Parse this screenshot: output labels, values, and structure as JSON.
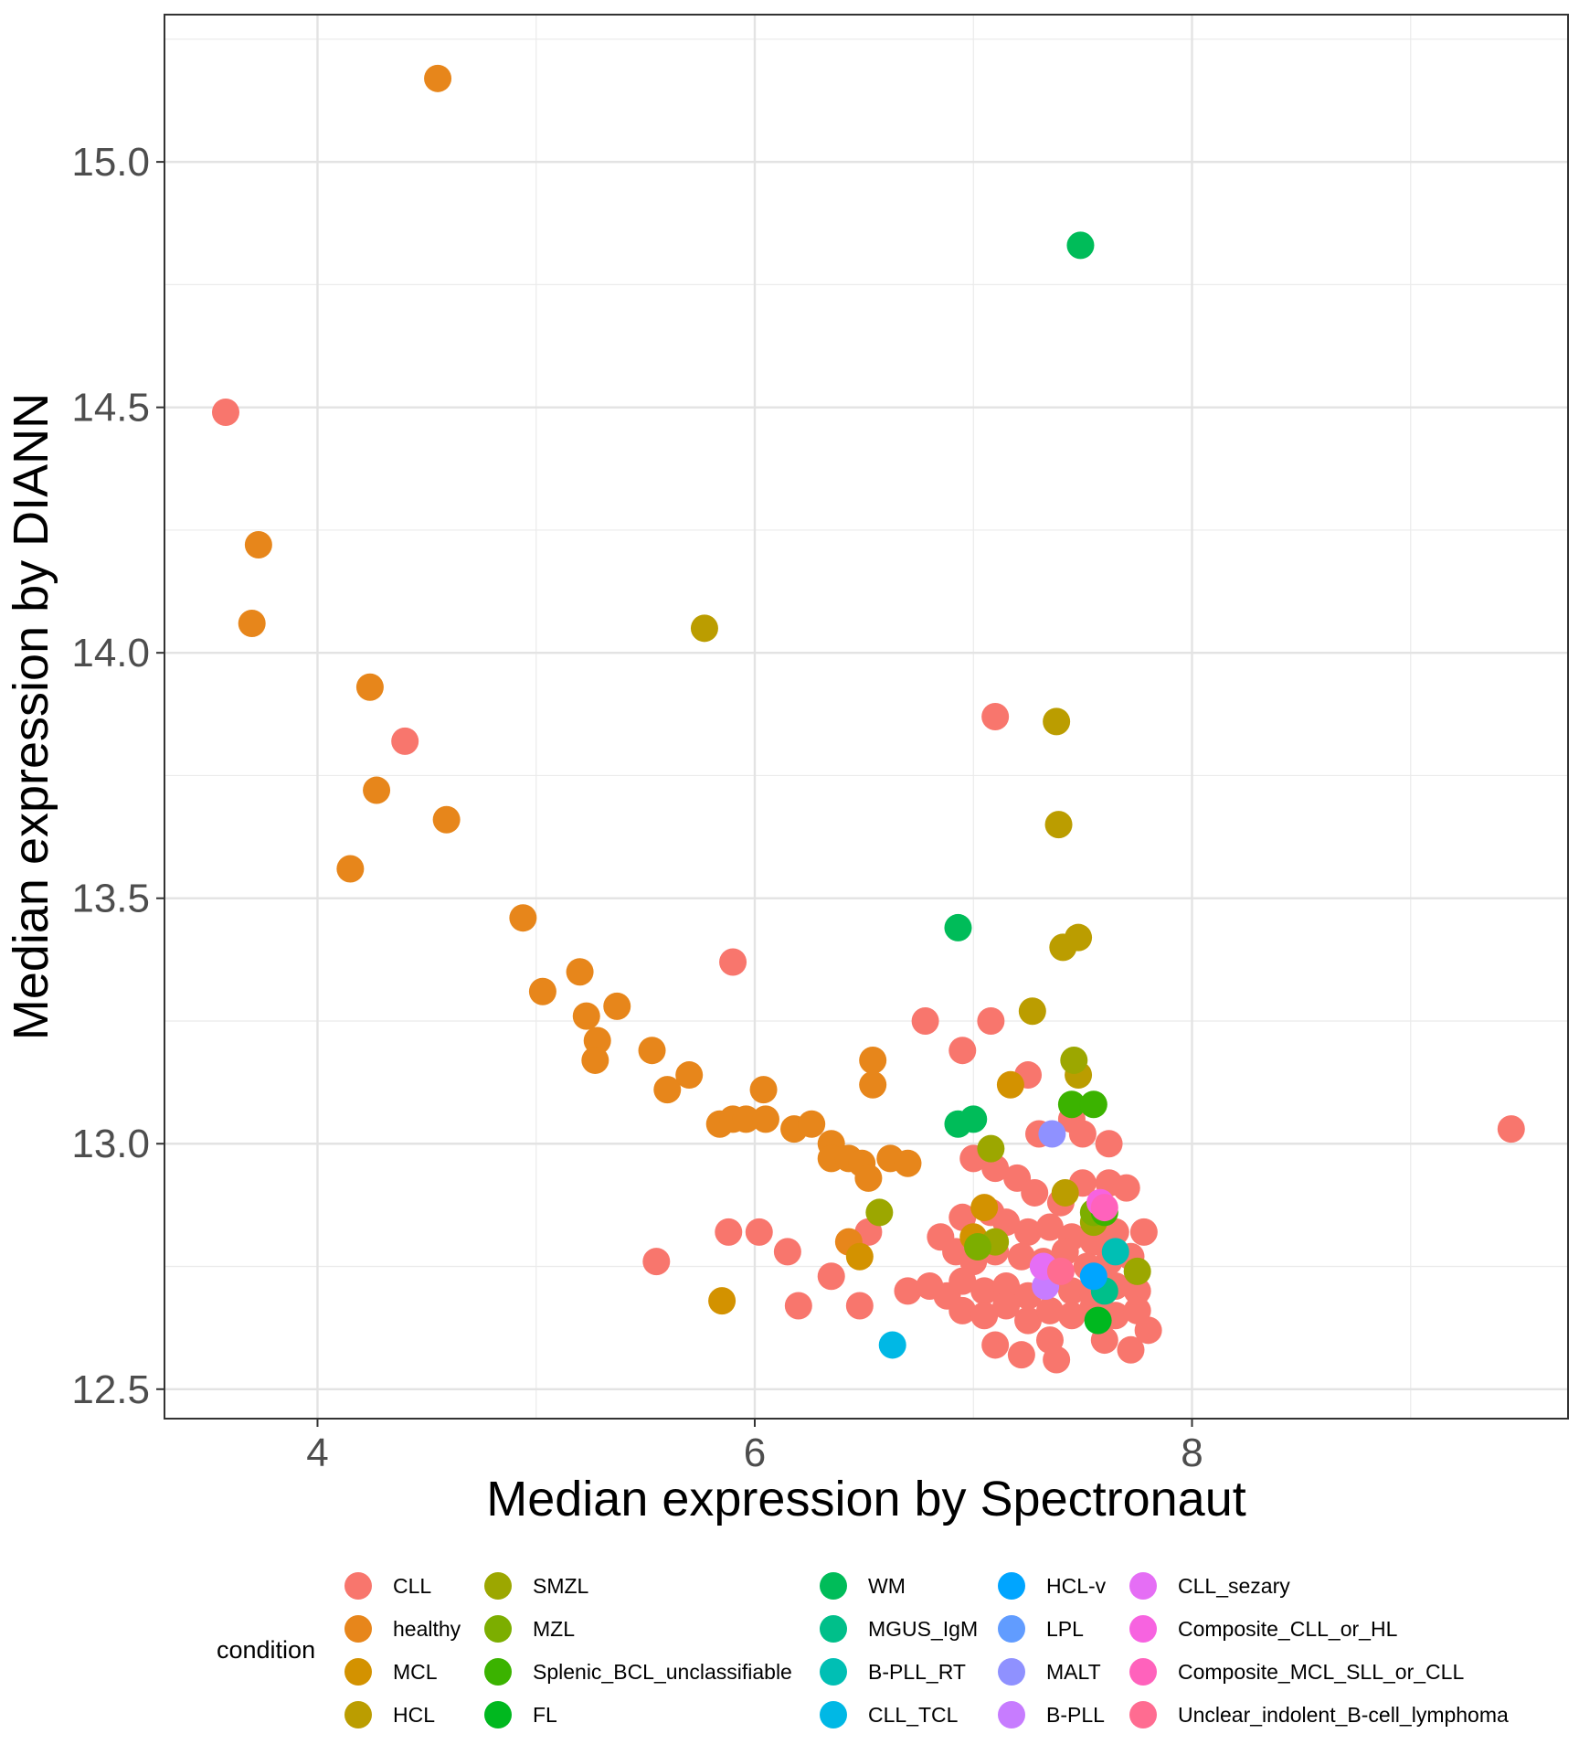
{
  "chart_data": {
    "type": "scatter",
    "xlabel": "Median expression by Spectronaut",
    "ylabel": "Median expression by DIANN",
    "xlim": [
      3.3,
      9.72
    ],
    "ylim": [
      12.44,
      15.3
    ],
    "x_ticks": [
      4,
      6,
      8
    ],
    "x_tick_labels": [
      "4",
      "6",
      "8"
    ],
    "y_ticks": [
      12.5,
      13.0,
      13.5,
      14.0,
      14.5,
      15.0
    ],
    "y_tick_labels": [
      "12.5",
      "13.0",
      "13.5",
      "14.0",
      "14.5",
      "15.0"
    ],
    "grid": true,
    "legend": {
      "title": "condition",
      "position": "bottom",
      "columns": [
        [
          {
            "label": "CLL",
            "color": "#F8766D"
          },
          {
            "label": "healthy",
            "color": "#E7861B"
          },
          {
            "label": "MCL",
            "color": "#D39200"
          },
          {
            "label": "HCL",
            "color": "#BB9D00"
          }
        ],
        [
          {
            "label": "SMZL",
            "color": "#9CA700"
          },
          {
            "label": "MZL",
            "color": "#7CAE00"
          },
          {
            "label": "Splenic_BCL_unclassifiable",
            "color": "#3BB300"
          },
          {
            "label": "FL",
            "color": "#00B81F"
          }
        ],
        [
          {
            "label": "WM",
            "color": "#00BC59"
          },
          {
            "label": "MGUS_IgM",
            "color": "#00BF8A"
          },
          {
            "label": "B-PLL_RT",
            "color": "#00BFB4"
          },
          {
            "label": "CLL_TCL",
            "color": "#00B8E5"
          }
        ],
        [
          {
            "label": "HCL-v",
            "color": "#00A5FF"
          },
          {
            "label": "LPL",
            "color": "#619CFF"
          },
          {
            "label": "MALT",
            "color": "#8F91FF"
          },
          {
            "label": "B-PLL",
            "color": "#C77CFF"
          }
        ],
        [
          {
            "label": "CLL_sezary",
            "color": "#E56EF5"
          },
          {
            "label": "Composite_CLL_or_HL",
            "color": "#F763E0"
          },
          {
            "label": "Composite_MCL_SLL_or_CLL",
            "color": "#FF62BC"
          },
          {
            "label": "Unclear_indolent_B-cell_lymphoma",
            "color": "#FF6C91"
          }
        ]
      ]
    },
    "series": [
      {
        "name": "CLL",
        "color": "#F8766D",
        "points": [
          [
            3.58,
            14.49
          ],
          [
            4.4,
            13.82
          ],
          [
            5.9,
            13.37
          ],
          [
            7.1,
            13.87
          ],
          [
            6.78,
            13.25
          ],
          [
            6.95,
            13.19
          ],
          [
            7.08,
            13.25
          ],
          [
            7.25,
            13.14
          ],
          [
            7.3,
            13.02
          ],
          [
            7.45,
            13.05
          ],
          [
            7.5,
            13.02
          ],
          [
            7.62,
            13.0
          ],
          [
            7.0,
            12.97
          ],
          [
            7.1,
            12.95
          ],
          [
            7.2,
            12.93
          ],
          [
            7.28,
            12.9
          ],
          [
            7.4,
            12.88
          ],
          [
            7.5,
            12.92
          ],
          [
            7.62,
            12.92
          ],
          [
            7.7,
            12.91
          ],
          [
            6.95,
            12.85
          ],
          [
            7.08,
            12.86
          ],
          [
            7.15,
            12.84
          ],
          [
            7.25,
            12.82
          ],
          [
            7.35,
            12.83
          ],
          [
            7.45,
            12.81
          ],
          [
            7.55,
            12.8
          ],
          [
            7.65,
            12.82
          ],
          [
            7.78,
            12.82
          ],
          [
            6.85,
            12.81
          ],
          [
            6.92,
            12.78
          ],
          [
            7.0,
            12.76
          ],
          [
            7.1,
            12.78
          ],
          [
            7.22,
            12.77
          ],
          [
            7.32,
            12.76
          ],
          [
            7.42,
            12.78
          ],
          [
            7.52,
            12.75
          ],
          [
            7.62,
            12.76
          ],
          [
            7.72,
            12.77
          ],
          [
            6.7,
            12.7
          ],
          [
            6.8,
            12.71
          ],
          [
            6.88,
            12.69
          ],
          [
            6.95,
            12.72
          ],
          [
            7.05,
            12.7
          ],
          [
            7.15,
            12.71
          ],
          [
            7.25,
            12.69
          ],
          [
            7.35,
            12.72
          ],
          [
            7.45,
            12.7
          ],
          [
            7.55,
            12.69
          ],
          [
            7.65,
            12.71
          ],
          [
            7.75,
            12.7
          ],
          [
            6.95,
            12.66
          ],
          [
            7.05,
            12.65
          ],
          [
            7.15,
            12.67
          ],
          [
            7.25,
            12.64
          ],
          [
            7.35,
            12.66
          ],
          [
            7.45,
            12.65
          ],
          [
            7.55,
            12.67
          ],
          [
            7.65,
            12.65
          ],
          [
            7.75,
            12.66
          ],
          [
            7.1,
            12.59
          ],
          [
            7.22,
            12.57
          ],
          [
            7.35,
            12.6
          ],
          [
            7.38,
            12.56
          ],
          [
            7.6,
            12.6
          ],
          [
            7.72,
            12.58
          ],
          [
            7.8,
            12.62
          ],
          [
            5.88,
            12.82
          ],
          [
            6.02,
            12.82
          ],
          [
            6.15,
            12.78
          ],
          [
            5.55,
            12.76
          ],
          [
            6.35,
            12.73
          ],
          [
            6.2,
            12.67
          ],
          [
            6.48,
            12.67
          ],
          [
            6.52,
            12.82
          ],
          [
            9.46,
            13.03
          ]
        ]
      },
      {
        "name": "healthy",
        "color": "#E7861B",
        "points": [
          [
            4.55,
            15.17
          ],
          [
            3.73,
            14.22
          ],
          [
            3.7,
            14.06
          ],
          [
            4.24,
            13.93
          ],
          [
            4.27,
            13.72
          ],
          [
            4.59,
            13.66
          ],
          [
            4.15,
            13.56
          ],
          [
            4.94,
            13.46
          ],
          [
            5.03,
            13.31
          ],
          [
            5.2,
            13.35
          ],
          [
            5.23,
            13.26
          ],
          [
            5.28,
            13.21
          ],
          [
            5.27,
            13.17
          ],
          [
            5.37,
            13.28
          ],
          [
            5.53,
            13.19
          ],
          [
            5.6,
            13.11
          ],
          [
            5.7,
            13.14
          ],
          [
            5.84,
            13.04
          ],
          [
            5.9,
            13.05
          ],
          [
            5.96,
            13.05
          ],
          [
            6.04,
            13.11
          ],
          [
            6.05,
            13.05
          ],
          [
            6.18,
            13.03
          ],
          [
            6.26,
            13.04
          ],
          [
            6.35,
            13.0
          ],
          [
            6.35,
            12.97
          ],
          [
            6.43,
            12.97
          ],
          [
            6.49,
            12.96
          ],
          [
            6.52,
            12.93
          ],
          [
            6.54,
            13.17
          ],
          [
            6.54,
            13.12
          ],
          [
            6.62,
            12.97
          ],
          [
            6.7,
            12.96
          ],
          [
            6.43,
            12.8
          ]
        ]
      },
      {
        "name": "MCL",
        "color": "#D39200",
        "points": [
          [
            5.85,
            12.68
          ],
          [
            6.48,
            12.77
          ],
          [
            7.17,
            13.12
          ],
          [
            7.0,
            12.81
          ],
          [
            7.05,
            12.87
          ]
        ]
      },
      {
        "name": "HCL",
        "color": "#BB9D00",
        "points": [
          [
            5.77,
            14.05
          ],
          [
            7.38,
            13.86
          ],
          [
            7.39,
            13.65
          ],
          [
            7.48,
            13.42
          ],
          [
            7.41,
            13.4
          ],
          [
            7.27,
            13.27
          ],
          [
            7.48,
            13.14
          ],
          [
            7.42,
            12.9
          ]
        ]
      },
      {
        "name": "SMZL",
        "color": "#9CA700",
        "points": [
          [
            7.46,
            13.17
          ],
          [
            6.57,
            12.86
          ],
          [
            7.08,
            12.99
          ],
          [
            7.55,
            12.84
          ],
          [
            7.75,
            12.74
          ],
          [
            7.1,
            12.8
          ]
        ]
      },
      {
        "name": "MZL",
        "color": "#7CAE00",
        "points": [
          [
            7.02,
            12.79
          ],
          [
            7.55,
            12.86
          ]
        ]
      },
      {
        "name": "Splenic_BCL_unclassifiable",
        "color": "#3BB300",
        "points": [
          [
            7.45,
            13.08
          ],
          [
            7.55,
            13.08
          ],
          [
            7.6,
            12.86
          ]
        ]
      },
      {
        "name": "FL",
        "color": "#00B81F",
        "points": [
          [
            7.57,
            12.64
          ]
        ]
      },
      {
        "name": "WM",
        "color": "#00BC59",
        "points": [
          [
            7.49,
            14.83
          ],
          [
            6.93,
            13.44
          ],
          [
            6.93,
            13.04
          ],
          [
            7.0,
            13.05
          ]
        ]
      },
      {
        "name": "MGUS_IgM",
        "color": "#00BF8A",
        "points": [
          [
            7.6,
            12.7
          ]
        ]
      },
      {
        "name": "B-PLL_RT",
        "color": "#00BFB4",
        "points": [
          [
            7.65,
            12.78
          ]
        ]
      },
      {
        "name": "CLL_TCL",
        "color": "#00B8E5",
        "points": [
          [
            6.63,
            12.59
          ]
        ]
      },
      {
        "name": "HCL-v",
        "color": "#00A5FF",
        "points": [
          [
            7.55,
            12.73
          ]
        ]
      },
      {
        "name": "MALT",
        "color": "#8F91FF",
        "points": [
          [
            7.36,
            13.02
          ]
        ]
      },
      {
        "name": "B-PLL",
        "color": "#C77CFF",
        "points": [
          [
            7.33,
            12.71
          ]
        ]
      },
      {
        "name": "CLL_sezary",
        "color": "#E56EF5",
        "points": [
          [
            7.32,
            12.75
          ]
        ]
      },
      {
        "name": "Composite_CLL_or_HL",
        "color": "#F763E0",
        "points": [
          [
            7.58,
            12.88
          ]
        ]
      },
      {
        "name": "Composite_MCL_SLL_or_CLL",
        "color": "#FF62BC",
        "points": [
          [
            7.6,
            12.87
          ]
        ]
      },
      {
        "name": "Unclear_indolent_B-cell_lymphoma",
        "color": "#FF6C91",
        "points": [
          [
            7.4,
            12.74
          ]
        ]
      }
    ]
  }
}
